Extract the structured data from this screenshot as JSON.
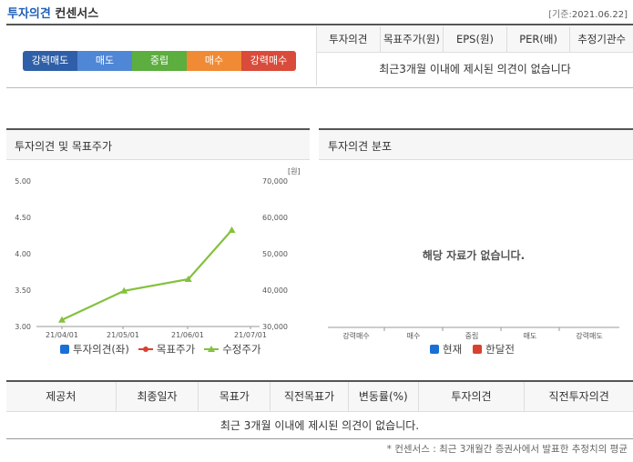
{
  "header": {
    "title_part1": "투자의견",
    "title_part2": "컨센서스",
    "date_label": "[기준:",
    "date_value": "2021.06.22]"
  },
  "scale": {
    "items": [
      {
        "label": "강력매도",
        "color": "#2f5fa8"
      },
      {
        "label": "매도",
        "color": "#4f86d6"
      },
      {
        "label": "중립",
        "color": "#5cae3e"
      },
      {
        "label": "매수",
        "color": "#f08a34"
      },
      {
        "label": "강력매수",
        "color": "#d94b3a"
      }
    ]
  },
  "consensus_table": {
    "headers": [
      "투자의견",
      "목표주가(원)",
      "EPS(원)",
      "PER(배)",
      "추정기관수"
    ],
    "empty_message": "최근3개월 이내에 제시된 의견이 없습니다"
  },
  "left_panel": {
    "title": "투자의견 및 목표주가",
    "unit_label": "[원]",
    "legend": [
      {
        "label": "투자의견(좌)",
        "color": "#1a6fd6",
        "icon": "square-icon"
      },
      {
        "label": "목표주가",
        "color": "#d9412f",
        "icon": "line-dot-icon"
      },
      {
        "label": "수정주가",
        "color": "#84c13c",
        "icon": "line-triangle-icon"
      }
    ]
  },
  "right_panel": {
    "title": "투자의견 분포",
    "no_data": "해당 자료가 없습니다.",
    "categories": [
      "강력매수",
      "매수",
      "중립",
      "매도",
      "강력매도"
    ],
    "legend": [
      {
        "label": "현재",
        "color": "#1a6fd6"
      },
      {
        "label": "한달전",
        "color": "#d9412f"
      }
    ]
  },
  "chart_data": {
    "type": "line",
    "x": [
      "21/04/01",
      "21/05/01",
      "21/06/01",
      "21/07/01"
    ],
    "y_left_ticks": [
      "5.00",
      "4.50",
      "4.00",
      "3.50",
      "3.00"
    ],
    "y_right_ticks": [
      "70,000",
      "60,000",
      "50,000",
      "40,000",
      "30,000"
    ],
    "y_left_lim": [
      3.0,
      5.0
    ],
    "y_right_lim": [
      30000,
      70000
    ],
    "series": [
      {
        "name": "수정주가",
        "axis": "right",
        "color": "#84c13c",
        "points": [
          [
            "21/04/01",
            31800
          ],
          [
            "21/05/01",
            39800
          ],
          [
            "21/06/01",
            43000
          ],
          [
            "21/06/22",
            56500
          ]
        ]
      }
    ]
  },
  "bottom_table": {
    "headers": [
      "제공처",
      "최종일자",
      "목표가",
      "직전목표가",
      "변동률(%)",
      "투자의견",
      "직전투자의견"
    ],
    "empty_message": "최근 3개월 이내에 제시된 의견이 없습니다."
  },
  "footnote": "* 컨센서스 : 최근 3개월간 증권사에서 발표한 추정치의 평균"
}
